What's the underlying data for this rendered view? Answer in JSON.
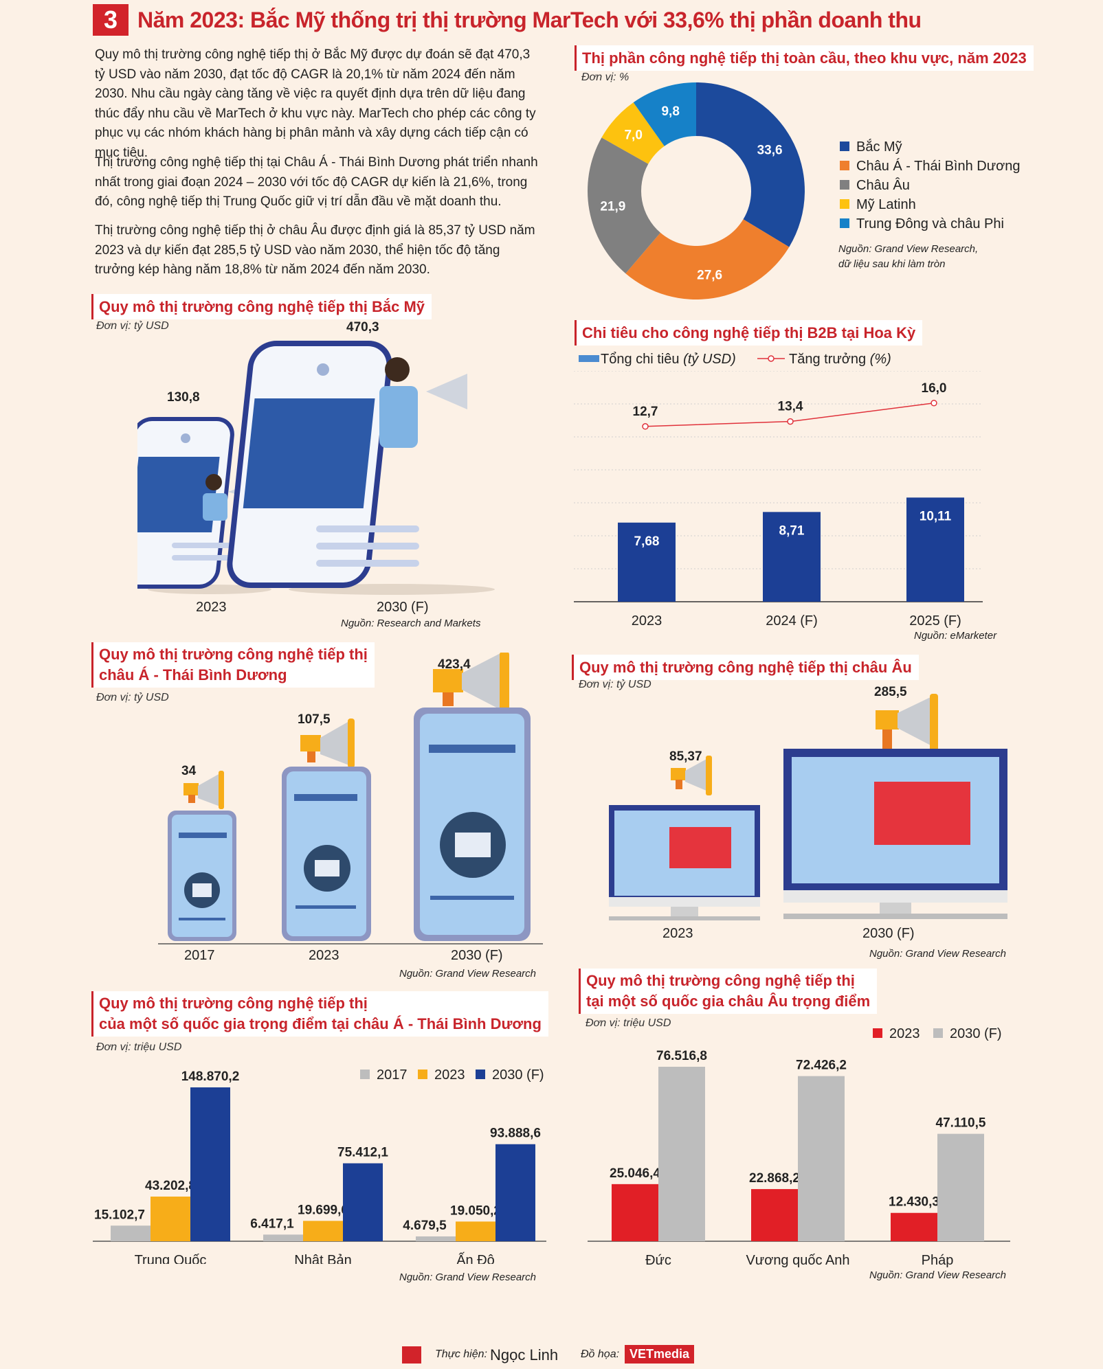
{
  "header": {
    "badge": "3",
    "title": "Năm 2023: Bắc Mỹ thống trị thị trường MarTech với 33,6% thị phần doanh thu"
  },
  "intro": [
    "Quy mô thị trường công nghệ tiếp thị ở Bắc Mỹ được dự đoán sẽ đạt 470,3 tỷ USD vào năm 2030, đạt tốc độ CAGR là 20,1% từ năm 2024 đến năm 2030. Nhu cầu ngày càng tăng về việc ra quyết định dựa trên dữ liệu đang thúc đẩy nhu cầu về MarTech ở khu vực này. MarTech cho phép các công ty phục vụ các nhóm khách hàng bị phân mảnh và xây dựng cách tiếp cận có mục tiêu.",
    "Thị trường công nghệ tiếp thị tại Châu Á - Thái Bình Dương phát triển nhanh nhất trong giai đoạn 2024 – 2030 với tốc độ CAGR dự kiến là 21,6%, trong đó, công nghệ tiếp thị Trung Quốc giữ vị trí dẫn đầu về mặt doanh thu.",
    "Thị trường công nghệ tiếp thị ở châu Âu được định giá là 85,37 tỷ USD năm 2023 và dự kiến đạt 285,5 tỷ USD vào năm 2030, thể hiện tốc độ tăng trưởng kép hàng năm 18,8% từ năm 2024 đến năm 2030."
  ],
  "footer": {
    "author_prefix": "Thực hiện:",
    "author": "Ngọc Linh",
    "graphics_prefix": "Đồ họa:",
    "brand": "VETmedia"
  },
  "colors": {
    "red": "#e11f26",
    "navy": "#1c3f95",
    "orange": "#f0822d",
    "gray": "#8c8c8c",
    "light_gray": "#bdbdbd",
    "yellow": "#fbbd0f",
    "blue": "#1b86cc",
    "amber": "#f7ad19",
    "bar_blue": "#1c3f95",
    "line_red": "#e0313a"
  },
  "chart_data": [
    {
      "id": "global",
      "type": "pie",
      "title": "Thị phần công nghệ tiếp thị toàn cầu, theo khu vực, năm 2023",
      "unit": "Đơn vị: %",
      "categories": [
        "Bắc Mỹ",
        "Châu Á - Thái Bình Dương",
        "Châu Âu",
        "Mỹ Latinh",
        "Trung Đông và châu Phi"
      ],
      "values": [
        33.6,
        27.6,
        21.9,
        7.0,
        9.8
      ],
      "labels": [
        "33,6",
        "27,6",
        "21,9",
        "7,0",
        "9,8"
      ],
      "colors": [
        "#1c4a9c",
        "#ef7f2d",
        "#808080",
        "#fdc20f",
        "#1681c8"
      ],
      "legend_position": "right",
      "source": "Nguồn: Grand View Research,",
      "source2": "dữ liệu sau khi làm tròn"
    },
    {
      "id": "na",
      "type": "bar",
      "title": "Quy mô thị trường công nghệ tiếp thị Bắc Mỹ",
      "unit": "Đơn vị: tỷ USD",
      "categories": [
        "2023",
        "2030 (F)"
      ],
      "values": [
        130.8,
        470.3
      ],
      "labels": [
        "130,8",
        "470,3"
      ],
      "source": "Nguồn: Research and Markets"
    },
    {
      "id": "b2b",
      "type": "bar",
      "title": "Chi tiêu cho công nghệ tiếp thị B2B tại Hoa Kỳ",
      "categories": [
        "2023",
        "2024 (F)",
        "2025 (F)"
      ],
      "series": [
        {
          "name": "Tổng chi tiêu (tỷ USD)",
          "values": [
            7.68,
            8.71,
            10.11
          ],
          "labels": [
            "7,68",
            "8,71",
            "10,11"
          ]
        },
        {
          "name": "Tăng trưởng (%)",
          "type": "line",
          "values": [
            12.7,
            13.4,
            16.0
          ],
          "labels": [
            "12,7",
            "13,4",
            "16,0"
          ]
        }
      ],
      "legend": {
        "bar_name": "Tổng chi tiêu",
        "bar_unit": "(tỷ USD)",
        "line_name": "Tăng trưởng",
        "line_unit": "(%)"
      },
      "grid": true,
      "source": "Nguồn: eMarketer"
    },
    {
      "id": "apac",
      "type": "bar",
      "title_line1": "Quy mô thị trường công nghệ tiếp thị",
      "title_line2": "châu Á - Thái Bình Dương",
      "unit": "Đơn vị: tỷ USD",
      "categories": [
        "2017",
        "2023",
        "2030 (F)"
      ],
      "values": [
        34,
        107.5,
        423.4
      ],
      "labels": [
        "34",
        "107,5",
        "423,4"
      ],
      "source": "Nguồn: Grand View Research"
    },
    {
      "id": "eu",
      "type": "bar",
      "title": "Quy mô thị trường công nghệ tiếp thị châu Âu",
      "unit": "Đơn vị: tỷ USD",
      "categories": [
        "2023",
        "2030 (F)"
      ],
      "values": [
        85.37,
        285.5
      ],
      "labels": [
        "85,37",
        "285,5"
      ],
      "source": "Nguồn: Grand View Research"
    },
    {
      "id": "apac_countries",
      "type": "bar",
      "title_line1": "Quy mô thị trường công nghệ tiếp thị",
      "title_line2": "của một số quốc gia trọng điểm tại châu Á - Thái Bình Dương",
      "unit": "Đơn vị: triệu USD",
      "categories": [
        "Trung Quốc",
        "Nhật Bản",
        "Ấn Độ"
      ],
      "series": [
        {
          "name": "2017",
          "values": [
            15102.7,
            6417.1,
            4679.5
          ],
          "labels": [
            "15.102,7",
            "6.417,1",
            "4.679,5"
          ],
          "color": "#bdbdbd"
        },
        {
          "name": "2023",
          "values": [
            43202.8,
            19699.6,
            19050.2
          ],
          "labels": [
            "43.202,8",
            "19.699,6",
            "19.050,2"
          ],
          "color": "#f7ad19"
        },
        {
          "name": "2030 (F)",
          "values": [
            148870.2,
            75412.1,
            93888.6
          ],
          "labels": [
            "148.870,2",
            "75.412,1",
            "93.888,6"
          ],
          "color": "#1c3f95"
        }
      ],
      "source": "Nguồn: Grand View Research"
    },
    {
      "id": "eu_countries",
      "type": "bar",
      "title_line1": "Quy mô thị trường công nghệ tiếp thị",
      "title_line2": "tại một số quốc gia châu Âu trọng điểm",
      "unit": "Đơn vị: triệu USD",
      "categories": [
        "Đức",
        "Vương quốc Anh",
        "Pháp"
      ],
      "series": [
        {
          "name": "2023",
          "values": [
            25046.4,
            22868.2,
            12430.3
          ],
          "labels": [
            "25.046,4",
            "22.868,2",
            "12.430,3"
          ],
          "color": "#e11f26"
        },
        {
          "name": "2030 (F)",
          "values": [
            76516.8,
            72426.2,
            47110.5
          ],
          "labels": [
            "76.516,8",
            "72.426,2",
            "47.110,5"
          ],
          "color": "#bdbdbd"
        }
      ],
      "source": "Nguồn: Grand View Research"
    }
  ]
}
